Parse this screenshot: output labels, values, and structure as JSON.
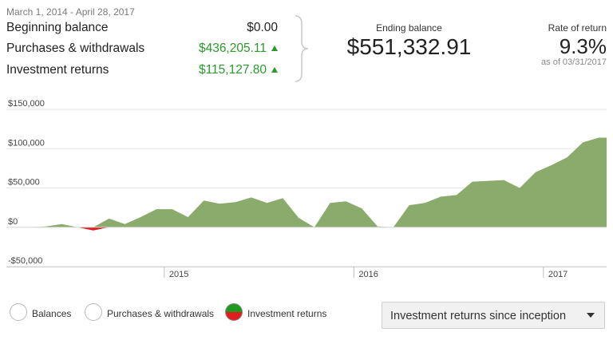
{
  "summary": {
    "date_range": "March 1, 2014 - April 28, 2017",
    "rows": [
      {
        "label": "Beginning balance",
        "value": "$0.00"
      },
      {
        "label": "Purchases & withdrawals",
        "value": "$436,205.11"
      },
      {
        "label": "Investment returns",
        "value": "$115,127.80"
      }
    ],
    "ending_balance": {
      "caption": "Ending balance",
      "value": "$551,332.91"
    },
    "rate_of_return": {
      "caption": "Rate of return",
      "value": "9.3%",
      "as_of": "as of 03/31/2017"
    }
  },
  "colors": {
    "positive": "#8aab6b",
    "negative": "#e01e1e",
    "grid": "#e6e6e6",
    "up_arrow": "#2a9b2a"
  },
  "chart_data": {
    "type": "area",
    "x": [
      "2014-03",
      "2014-04",
      "2014-05",
      "2014-06",
      "2014-07",
      "2014-08",
      "2014-09",
      "2014-10",
      "2014-11",
      "2014-12",
      "2015-01",
      "2015-02",
      "2015-03",
      "2015-04",
      "2015-05",
      "2015-06",
      "2015-07",
      "2015-08",
      "2015-09",
      "2015-10",
      "2015-11",
      "2015-12",
      "2016-01",
      "2016-02",
      "2016-03",
      "2016-04",
      "2016-05",
      "2016-06",
      "2016-07",
      "2016-08",
      "2016-09",
      "2016-10",
      "2016-11",
      "2016-12",
      "2017-01",
      "2017-02",
      "2017-03",
      "2017-04"
    ],
    "series": [
      {
        "values": [
          0,
          0,
          1000,
          4000,
          0,
          -4000,
          11000,
          4000,
          13000,
          23000,
          23000,
          13000,
          34000,
          30000,
          32000,
          38000,
          31000,
          37000,
          12000,
          0,
          31000,
          33000,
          24000,
          1000,
          0,
          28000,
          31000,
          39000,
          41000,
          58000,
          59000,
          60000,
          50000,
          70000,
          79000,
          89000,
          108000,
          114000
        ]
      }
    ],
    "ylim": [
      -50000,
      150000
    ],
    "y_ticks": [
      -50000,
      0,
      50000,
      100000,
      150000
    ],
    "y_tick_labels": [
      "-$50,000",
      "$0",
      "$50,000",
      "$100,000",
      "$150,000"
    ],
    "x_ticks": [
      "2015",
      "2016",
      "2017"
    ],
    "grid": true
  },
  "legend": {
    "items": [
      {
        "label": "Balances",
        "selected": false
      },
      {
        "label": "Purchases & withdrawals",
        "selected": false
      },
      {
        "label": "Investment returns",
        "selected": true
      }
    ]
  },
  "period_select": {
    "value": "Investment returns since inception"
  }
}
